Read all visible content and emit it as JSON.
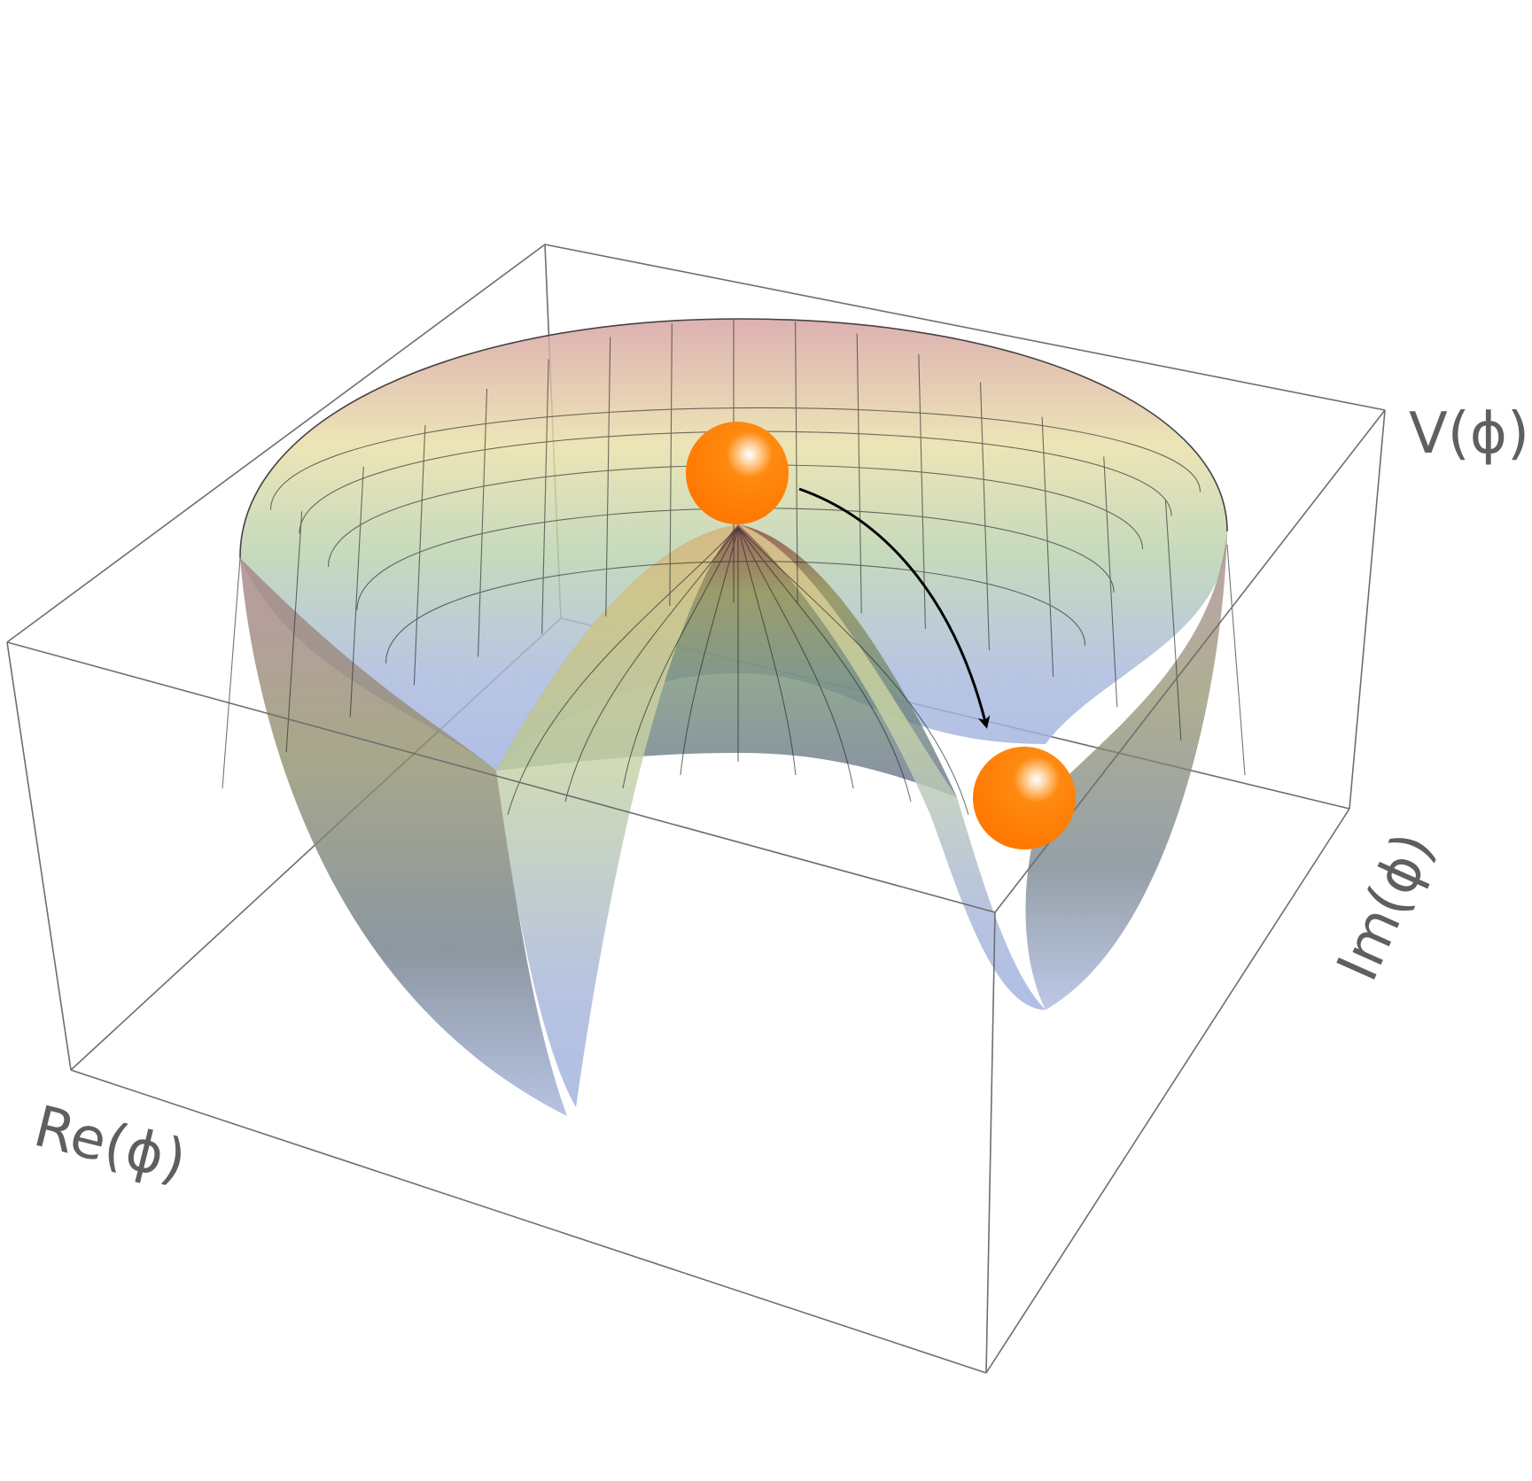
{
  "figure": {
    "title": "",
    "description_hidden": true,
    "axes": {
      "z_label": "V(ϕ)",
      "x_label": "Re(ϕ)",
      "y_label": "Im(ϕ)"
    },
    "surface": {
      "type": "mexican-hat-potential",
      "cutaway": "front-quadrant-removed",
      "colors": {
        "low": "#a8b6e4",
        "mid_low": "#b6d6b8",
        "mid": "#e9e4a8",
        "high": "#d49a9a",
        "mesh": "#2a2a2a",
        "box": "#6e6e6e"
      }
    },
    "balls": [
      {
        "name": "ball-top",
        "state": "unstable maximum",
        "color": "#ff7f00"
      },
      {
        "name": "ball-bottom",
        "state": "stable minimum",
        "color": "#ff7f00"
      }
    ],
    "arrow": {
      "from": "ball-top",
      "to": "ball-bottom",
      "color": "#000000"
    }
  }
}
